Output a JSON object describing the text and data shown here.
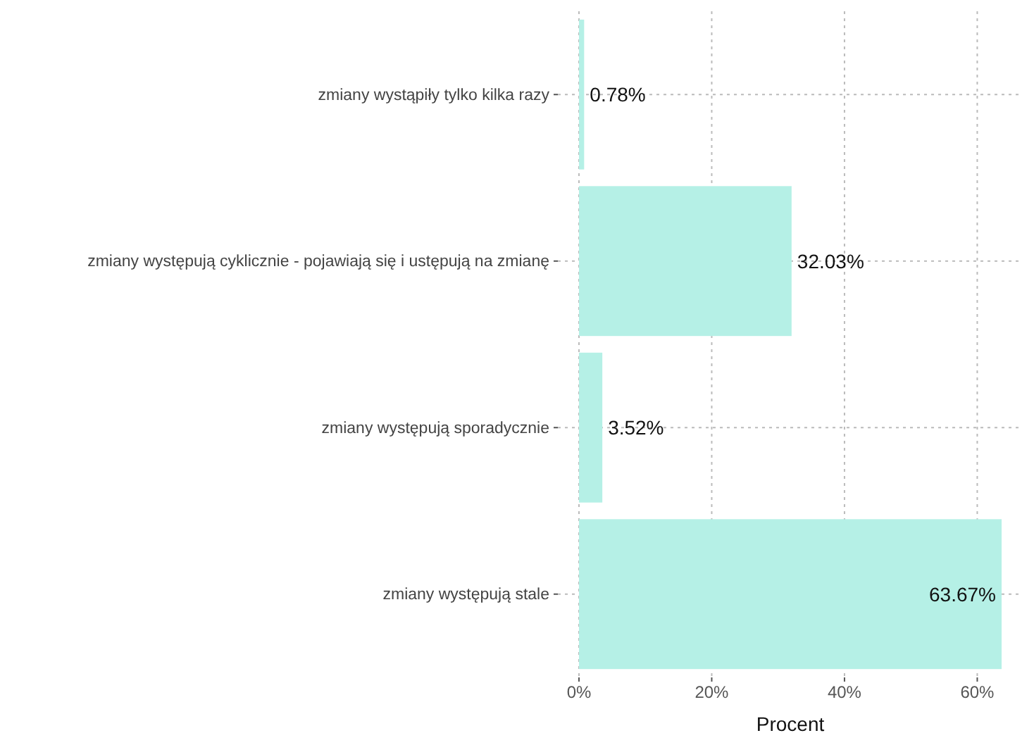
{
  "chart_data": {
    "type": "bar",
    "orientation": "horizontal",
    "xlabel": "Procent",
    "categories": [
      "zmiany wystąpiły tylko kilka razy",
      "zmiany występują cyklicznie - pojawiają się i ustępują na zmianę",
      "zmiany występują sporadycznie",
      "zmiany występują stale"
    ],
    "values": [
      0.78,
      32.03,
      3.52,
      63.67
    ],
    "value_labels": [
      "0.78%",
      "32.03%",
      "3.52%",
      "63.67%"
    ],
    "color": "#b5f0e6",
    "xlim": [
      -3.18,
      66.85
    ],
    "xticks": [
      {
        "value": 0,
        "label": "0%"
      },
      {
        "value": 20,
        "label": "20%"
      },
      {
        "value": 40,
        "label": "40%"
      },
      {
        "value": 60,
        "label": "60%"
      }
    ],
    "grid": true
  }
}
